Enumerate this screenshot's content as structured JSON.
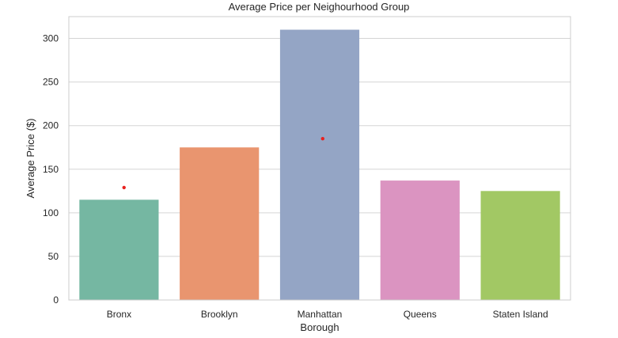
{
  "chart_data": {
    "type": "bar",
    "title": "Average Price per Neighourhood Group",
    "xlabel": "Borough",
    "ylabel": "Average Price ($)",
    "ylim": [
      0,
      325
    ],
    "yticks": [
      0,
      50,
      100,
      150,
      200,
      250,
      300
    ],
    "grid": true,
    "categories": [
      "Bronx",
      "Brooklyn",
      "Manhattan",
      "Queens",
      "Staten Island"
    ],
    "values": [
      115,
      175,
      310,
      137,
      125
    ],
    "colors": [
      "#75b7a2",
      "#e9956f",
      "#94a5c5",
      "#db94c1",
      "#a2c864"
    ],
    "markers": [
      {
        "category_index": 0,
        "offset": 0.05,
        "value": 129
      },
      {
        "category_index": 2,
        "offset": 0.03,
        "value": 185
      }
    ],
    "marker_color": "#e8221f"
  }
}
